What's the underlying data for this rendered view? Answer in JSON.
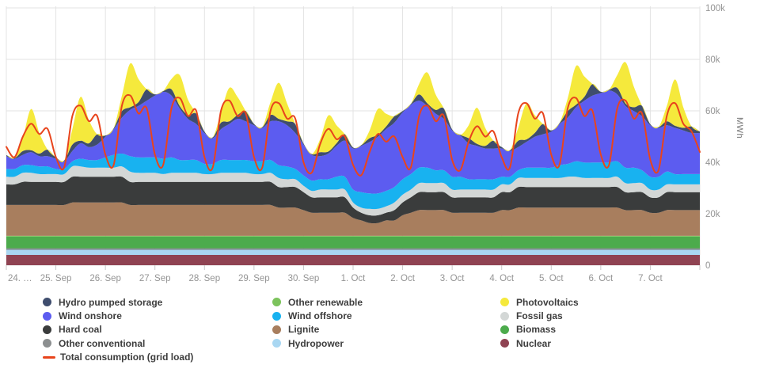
{
  "page": {
    "background": "#ffffff"
  },
  "chart": {
    "y_axis": {
      "unit": "MWh",
      "tick_labels": [
        "0",
        "20k",
        "40k",
        "60k",
        "80k",
        "100k"
      ],
      "tick_values": [
        0,
        20,
        40,
        60,
        80,
        100
      ]
    },
    "x_axis": {
      "tick_labels": [
        "24. …",
        "25. Sep",
        "26. Sep",
        "27. Sep",
        "28. Sep",
        "29. Sep",
        "30. Sep",
        "1. Oct",
        "2. Oct",
        "3. Oct",
        "4. Oct",
        "5. Oct",
        "6. Oct",
        "7. Oct"
      ]
    },
    "colors": {
      "grid": "#e3e3e3",
      "tick": "#c9c9c9",
      "axis_text": "#949494",
      "legend_text": "#3d3d3d"
    }
  },
  "legend": {
    "columns": [
      [
        {
          "label": "Hydro pumped storage",
          "color": "#3f4d6e",
          "swatch": "dot"
        },
        {
          "label": "Wind onshore",
          "color": "#5c5cf0",
          "swatch": "dot"
        },
        {
          "label": "Hard coal",
          "color": "#3a3c3c",
          "swatch": "dot"
        },
        {
          "label": "Other conventional",
          "color": "#8c8f90",
          "swatch": "dot"
        },
        {
          "label": "Total consumption (grid load)",
          "color": "#e8441c",
          "swatch": "line"
        }
      ],
      [
        {
          "label": "Other renewable",
          "color": "#7cc35c",
          "swatch": "dot"
        },
        {
          "label": "Wind offshore",
          "color": "#18b2f0",
          "swatch": "dot"
        },
        {
          "label": "Lignite",
          "color": "#a87e5e",
          "swatch": "dot"
        },
        {
          "label": "Hydropower",
          "color": "#a9d7f2",
          "swatch": "dot"
        }
      ],
      [
        {
          "label": "Photovoltaics",
          "color": "#f5e93c",
          "swatch": "dot"
        },
        {
          "label": "Fossil gas",
          "color": "#d3d7d6",
          "swatch": "dot"
        },
        {
          "label": "Biomass",
          "color": "#4cab4c",
          "swatch": "dot"
        },
        {
          "label": "Nuclear",
          "color": "#8f4352",
          "swatch": "dot"
        }
      ]
    ]
  },
  "chart_data": {
    "type": "area",
    "stacked": true,
    "title": "",
    "xlabel": "",
    "ylabel": "MWh",
    "ylim": [
      0,
      100000
    ],
    "grid": true,
    "legend_position": "bottom",
    "x_start": "24. Sep 00:00",
    "x_step_hours": 4,
    "n_points": 85,
    "x_tick_labels": [
      "24. …",
      "25. Sep",
      "26. Sep",
      "27. Sep",
      "28. Sep",
      "29. Sep",
      "30. Sep",
      "1. Oct",
      "2. Oct",
      "3. Oct",
      "4. Oct",
      "5. Oct",
      "6. Oct",
      "7. Oct"
    ],
    "value_unit": "MWh",
    "value_scale": 1000,
    "series": [
      {
        "name": "Nuclear",
        "color": "#8f4352",
        "values": 4
      },
      {
        "name": "Hydropower",
        "color": "#a9d7f2",
        "values": 2
      },
      {
        "name": "Other conventional",
        "color": "#7e8487",
        "values": 0.6
      },
      {
        "name": "Biomass",
        "color": "#4cab4c",
        "values": 4.5
      },
      {
        "name": "Other renewable",
        "color": "#7cc35c",
        "values": 0.3
      },
      {
        "name": "Lignite",
        "color": "#a87e5e",
        "values": [
          12,
          12,
          12,
          12,
          12,
          12,
          12,
          12,
          13,
          13,
          13,
          13,
          13,
          13,
          13,
          12,
          12,
          12,
          12,
          12,
          12,
          12,
          12,
          12,
          12,
          12,
          12,
          12,
          12,
          12,
          12,
          12,
          12,
          11,
          11,
          11,
          10,
          9,
          9,
          9,
          9,
          9,
          7,
          6,
          5,
          5,
          6,
          6,
          8,
          9,
          10,
          10,
          10,
          10,
          9,
          9,
          9,
          9,
          9,
          9,
          10,
          10,
          11,
          11,
          11,
          11,
          11,
          11,
          11,
          11,
          11,
          11,
          11,
          11,
          11,
          10,
          10,
          10,
          9,
          9,
          10,
          10,
          10,
          10,
          10
        ]
      },
      {
        "name": "Hard coal",
        "color": "#3a3c3c",
        "values": [
          8,
          8,
          9,
          9,
          9,
          9,
          9,
          9,
          10,
          10,
          10,
          10,
          10,
          10,
          10,
          9,
          9,
          9,
          9,
          9,
          9,
          9,
          9,
          9,
          9,
          9,
          9,
          9,
          9,
          9,
          9,
          9,
          9,
          8,
          8,
          8,
          7,
          6,
          6,
          6,
          6,
          6,
          4,
          3,
          3,
          3,
          3,
          4,
          5,
          6,
          7,
          7,
          7,
          7,
          6,
          6,
          6,
          6,
          6,
          6,
          7,
          7,
          8,
          8,
          8,
          8,
          8,
          8,
          8,
          8,
          8,
          8,
          8,
          8,
          8,
          7,
          7,
          7,
          6,
          6,
          7,
          7,
          7,
          7,
          7
        ]
      },
      {
        "name": "Fossil gas",
        "color": "#d3d7d6",
        "values": [
          3,
          3,
          3.5,
          3.5,
          3,
          3,
          3,
          3,
          4,
          4,
          3.5,
          3.5,
          3.5,
          3.5,
          4,
          4,
          3.5,
          3.5,
          3.5,
          3,
          3.5,
          3.5,
          3.5,
          3.5,
          3,
          3,
          3.5,
          3.5,
          3.5,
          3.5,
          3,
          3,
          3.5,
          3.5,
          3,
          3,
          2.5,
          2.5,
          3,
          3,
          3,
          3,
          2,
          2,
          2.5,
          2.5,
          2.5,
          3,
          3,
          3,
          3.5,
          3.5,
          3.5,
          3.5,
          3,
          3,
          3,
          3,
          3,
          3,
          3,
          3,
          3.5,
          3.5,
          3.5,
          3.5,
          3.5,
          3.5,
          4,
          4,
          3.5,
          3.5,
          3.5,
          3.5,
          4,
          3.5,
          3.5,
          3.5,
          3,
          3,
          3,
          3,
          3,
          3,
          3
        ]
      },
      {
        "name": "Wind offshore",
        "color": "#18b2f0",
        "values": [
          3,
          3,
          3,
          3,
          3,
          3,
          2,
          2,
          2,
          3,
          3,
          3,
          4,
          5,
          5,
          6,
          6,
          6,
          6,
          6,
          6,
          5,
          5,
          5,
          4,
          4,
          5,
          5,
          5,
          5,
          5,
          5,
          5,
          5,
          5,
          4,
          4,
          4,
          4,
          4,
          5,
          5,
          5,
          6,
          6,
          6,
          6,
          6,
          6,
          6,
          6,
          6,
          5,
          5,
          5,
          5,
          4,
          4,
          4,
          4,
          3,
          3,
          3,
          4,
          4,
          4,
          4,
          5,
          5,
          6,
          6,
          6,
          6,
          6,
          6,
          6,
          6,
          5,
          5,
          5,
          5,
          4,
          4,
          4,
          4
        ]
      },
      {
        "name": "Wind onshore",
        "color": "#5c5cf0",
        "values": [
          5,
          4,
          4,
          5,
          4,
          4,
          4,
          3,
          4,
          6,
          5,
          6,
          8,
          10,
          14,
          18,
          20,
          22,
          24,
          26,
          24,
          20,
          16,
          14,
          12,
          10,
          12,
          14,
          16,
          15,
          14,
          13,
          15,
          17,
          16,
          14,
          12,
          10,
          9,
          10,
          12,
          14,
          16,
          18,
          20,
          22,
          24,
          25,
          26,
          27,
          26,
          24,
          22,
          20,
          18,
          16,
          14,
          13,
          12,
          12,
          11,
          10,
          9,
          10,
          12,
          13,
          14,
          16,
          18,
          21,
          24,
          26,
          27,
          28,
          26,
          24,
          22,
          21,
          20,
          19,
          18,
          18,
          17,
          16,
          16
        ]
      },
      {
        "name": "Hydro pumped storage",
        "color": "#3f4d6e",
        "values": [
          0.4,
          0.3,
          1.5,
          0.8,
          1,
          2.5,
          0.5,
          0.3,
          2.5,
          1,
          1.5,
          4,
          0.5,
          0.3,
          2.5,
          1,
          1.5,
          4.5,
          0.5,
          0.3,
          2.5,
          1,
          1.5,
          4,
          0.5,
          0.3,
          2.5,
          1,
          1.5,
          4,
          0.5,
          0.3,
          2.5,
          1,
          1.5,
          3.5,
          0.4,
          0.3,
          1.5,
          0.8,
          1,
          2.5,
          0.4,
          0.3,
          1.5,
          0.8,
          1,
          2.5,
          0.5,
          0.3,
          2.5,
          1,
          1.5,
          4,
          0.4,
          0.3,
          2,
          0.8,
          1,
          3,
          0.5,
          0.3,
          2.5,
          1,
          1.5,
          4,
          0.5,
          0.3,
          2.5,
          1,
          1.5,
          4.5,
          0.5,
          0.3,
          2.5,
          1,
          1.5,
          4,
          0.4,
          0.3,
          1.5,
          0.8,
          1,
          2.5,
          0.5
        ]
      },
      {
        "name": "Photovoltaics",
        "color": "#f5e93c",
        "values": [
          0,
          0,
          5,
          16,
          8,
          0,
          0,
          0,
          6,
          17,
          9,
          0,
          0,
          0,
          6,
          17,
          9,
          0,
          0,
          0,
          4,
          12,
          6,
          0,
          0,
          0,
          4,
          13,
          7,
          0,
          0,
          0,
          5,
          14,
          7,
          0,
          0,
          0,
          5,
          14,
          7,
          0,
          0,
          0,
          3,
          10,
          5,
          0,
          0,
          0,
          4,
          12,
          6,
          0,
          0,
          0,
          5,
          14,
          7,
          0,
          0,
          0,
          5,
          14,
          7,
          0,
          0,
          0,
          5,
          15,
          8,
          0,
          0,
          0,
          5,
          16,
          8,
          0,
          0,
          0,
          6,
          18,
          8,
          0,
          0
        ]
      }
    ],
    "line_series": {
      "name": "Total consumption (grid load)",
      "color": "#e8441c",
      "values": [
        46,
        42,
        50,
        55,
        51,
        53,
        42,
        38,
        58,
        62,
        56,
        58,
        43,
        39,
        62,
        66,
        59,
        61,
        43,
        39,
        61,
        65,
        58,
        60,
        42,
        38,
        60,
        64,
        58,
        59,
        42,
        38,
        60,
        63,
        57,
        57,
        40,
        36,
        47,
        53,
        49,
        50,
        39,
        35,
        44,
        51,
        48,
        50,
        42,
        38,
        58,
        62,
        56,
        58,
        41,
        37,
        48,
        54,
        50,
        52,
        42,
        38,
        59,
        63,
        57,
        59,
        43,
        39,
        61,
        65,
        58,
        60,
        43,
        39,
        61,
        64,
        57,
        59,
        41,
        37,
        58,
        63,
        55,
        52,
        44
      ]
    }
  }
}
